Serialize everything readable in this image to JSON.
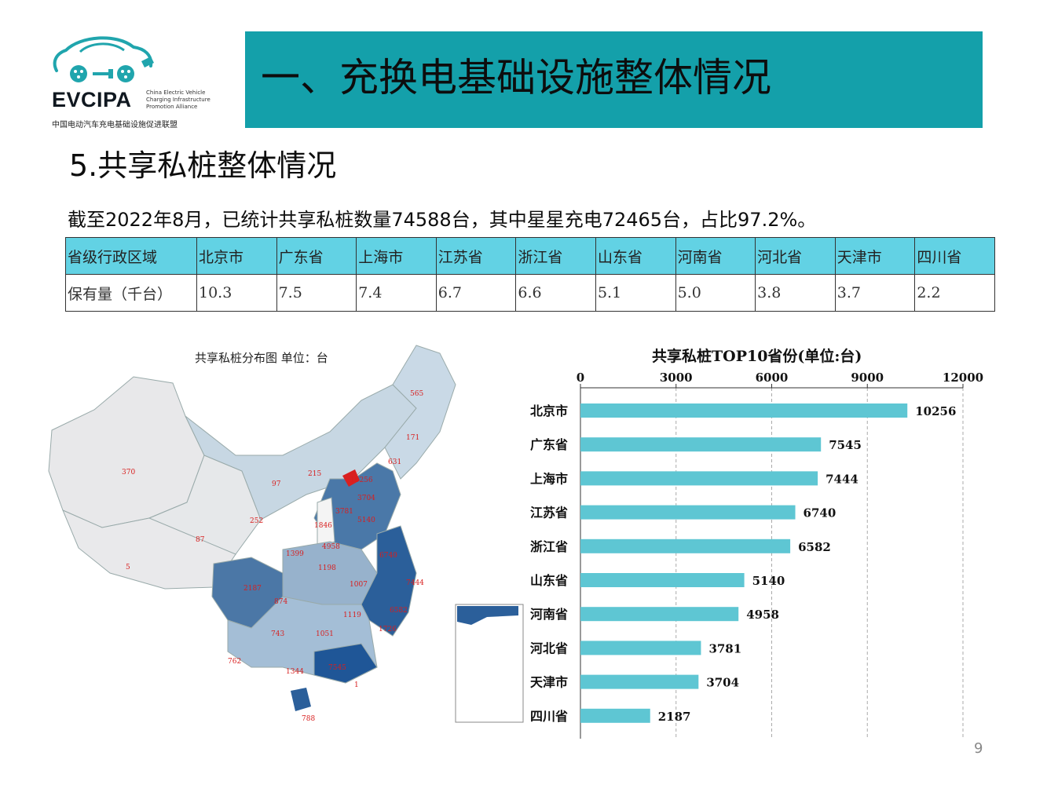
{
  "logo": {
    "name": "EVCIPA",
    "subtitle_lines": [
      "China Electric Vehicle",
      "Charging Infrastructure",
      "Promotion Alliance"
    ],
    "cn_name": "中国电动汽车充电基础设施促进联盟",
    "color": "#20a5ad"
  },
  "banner": {
    "title": "一、充换电基础设施整体情况",
    "bg_color": "#14a0aa"
  },
  "section_title": "5.共享私桩整体情况",
  "summary": "截至2022年8月，已统计共享私桩数量74588台，其中星星充电72465台，占比97.2%。",
  "table": {
    "header": [
      "省级行政区域",
      "北京市",
      "广东省",
      "上海市",
      "江苏省",
      "浙江省",
      "山东省",
      "河南省",
      "河北省",
      "天津市",
      "四川省"
    ],
    "row": [
      "保有量（千台）",
      "10.3",
      "7.5",
      "7.4",
      "6.7",
      "6.6",
      "5.1",
      "5.0",
      "3.8",
      "3.7",
      "2.2"
    ],
    "header_bg": "#62d2e4"
  },
  "map": {
    "title": "共享私桩分布图 单位：台",
    "labels": [
      {
        "text": "565"
      },
      {
        "text": "171"
      },
      {
        "text": "631"
      },
      {
        "text": "10256"
      },
      {
        "text": "3704"
      },
      {
        "text": "370"
      },
      {
        "text": "215"
      },
      {
        "text": "97"
      },
      {
        "text": "252"
      },
      {
        "text": "87"
      },
      {
        "text": "5"
      },
      {
        "text": "3781"
      },
      {
        "text": "1846"
      },
      {
        "text": "5140"
      },
      {
        "text": "1399"
      },
      {
        "text": "4958"
      },
      {
        "text": "6740"
      },
      {
        "text": "7444"
      },
      {
        "text": "2187"
      },
      {
        "text": "1198"
      },
      {
        "text": "1007"
      },
      {
        "text": "874"
      },
      {
        "text": "6582"
      },
      {
        "text": "1119"
      },
      {
        "text": "743"
      },
      {
        "text": "1051"
      },
      {
        "text": "1726"
      },
      {
        "text": "762"
      },
      {
        "text": "1344"
      },
      {
        "text": "7545"
      },
      {
        "text": "1"
      },
      {
        "text": "788"
      }
    ]
  },
  "chart_data": {
    "type": "bar",
    "orientation": "horizontal",
    "title": "共享私桩TOP10省份(单位:台)",
    "categories": [
      "北京市",
      "广东省",
      "上海市",
      "江苏省",
      "浙江省",
      "山东省",
      "河南省",
      "河北省",
      "天津市",
      "四川省"
    ],
    "values": [
      10256,
      7545,
      7444,
      6740,
      6582,
      5140,
      4958,
      3781,
      3704,
      2187
    ],
    "xlim": [
      0,
      12000
    ],
    "xticks": [
      0,
      3000,
      6000,
      9000,
      12000
    ],
    "axis_position": "top",
    "grid": "vertical dashed",
    "bar_color": "#5ec6d3"
  },
  "page_number": "9"
}
